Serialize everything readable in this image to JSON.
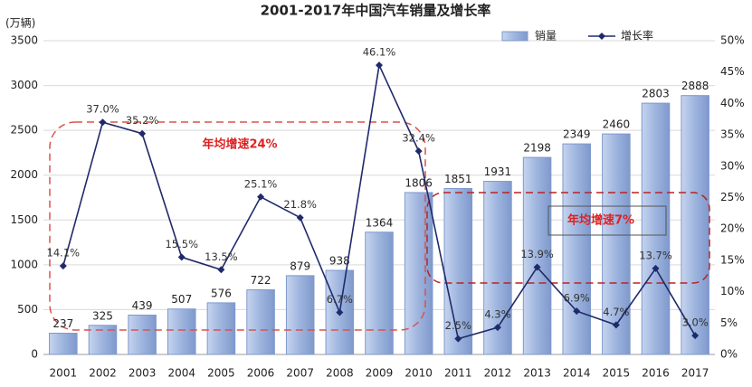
{
  "chart_data": {
    "type": "bar",
    "title": "2001-2017年中国汽车销量及增长率",
    "y_label": "(万辆)",
    "categories": [
      "2001",
      "2002",
      "2003",
      "2004",
      "2005",
      "2006",
      "2007",
      "2008",
      "2009",
      "2010",
      "2011",
      "2012",
      "2013",
      "2014",
      "2015",
      "2016",
      "2017"
    ],
    "series": [
      {
        "name": "销量",
        "color": "#9db4de",
        "type": "bar",
        "values": [
          237,
          325,
          439,
          507,
          576,
          722,
          879,
          938,
          1364,
          1806,
          1851,
          1931,
          2198,
          2349,
          2460,
          2803,
          2888
        ]
      },
      {
        "name": "增长率",
        "color": "#1f2a6b",
        "type": "line",
        "axis": "y2",
        "values": [
          14.1,
          37.0,
          35.2,
          15.5,
          13.5,
          25.1,
          21.8,
          6.7,
          46.1,
          32.4,
          2.5,
          4.3,
          13.9,
          6.9,
          4.7,
          13.7,
          3.0
        ],
        "value_labels": [
          "14.1%",
          "37.0%",
          "35.2%",
          "15.5%",
          "13.5%",
          "25.1%",
          "21.8%",
          "6.7%",
          "46.1%",
          "32.4%",
          "2.5%",
          "4.3%",
          "13.9%",
          "6.9%",
          "4.7%",
          "13.7%",
          "3.0%"
        ]
      }
    ],
    "ylim": [
      0,
      3500
    ],
    "yticks": [
      0,
      500,
      1000,
      1500,
      2000,
      2500,
      3000,
      3500
    ],
    "y2lim": [
      0,
      50
    ],
    "y2ticks": [
      {
        "value": 0,
        "label": "0%"
      },
      {
        "value": 5,
        "label": "5%"
      },
      {
        "value": 10,
        "label": "10%"
      },
      {
        "value": 15,
        "label": "15%"
      },
      {
        "value": 20,
        "label": "20%"
      },
      {
        "value": 25,
        "label": "25%"
      },
      {
        "value": 30,
        "label": "30%"
      },
      {
        "value": 35,
        "label": "35%"
      },
      {
        "value": 40,
        "label": "40%"
      },
      {
        "value": 45,
        "label": "45%"
      },
      {
        "value": 50,
        "label": "50%"
      }
    ],
    "grid": true,
    "legend": "top-right",
    "annotations": [
      "年均增速24%",
      "年均增速7%"
    ]
  }
}
